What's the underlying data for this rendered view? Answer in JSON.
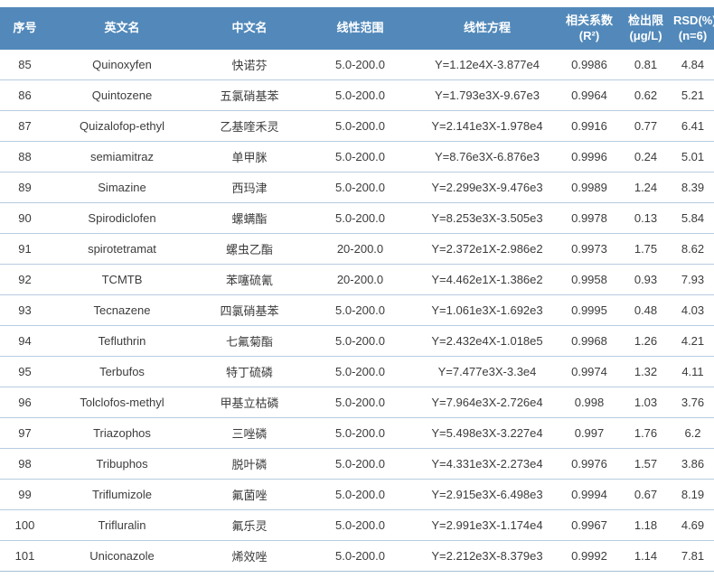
{
  "colors": {
    "header_bg": "#5289BA",
    "header_text": "#FFFFFF",
    "row_divider": "#B7CCE0",
    "body_text": "#3C3C3C"
  },
  "table": {
    "columns": [
      {
        "key": "no",
        "label": "序号",
        "sub": ""
      },
      {
        "key": "en",
        "label": "英文名",
        "sub": ""
      },
      {
        "key": "cn",
        "label": "中文名",
        "sub": ""
      },
      {
        "key": "range",
        "label": "线性范围",
        "sub": ""
      },
      {
        "key": "equation",
        "label": "线性方程",
        "sub": ""
      },
      {
        "key": "r2",
        "label": "相关系数",
        "sub": "(R²)"
      },
      {
        "key": "lod",
        "label": "检出限",
        "sub": "(μg/L)"
      },
      {
        "key": "rsd",
        "label": "RSD(%)",
        "sub": "(n=6)"
      }
    ],
    "rows": [
      {
        "no": "85",
        "en": "Quinoxyfen",
        "cn": "快诺芬",
        "range": "5.0-200.0",
        "equation": "Y=1.12e4X-3.877e4",
        "r2": "0.9986",
        "lod": "0.81",
        "rsd": "4.84"
      },
      {
        "no": "86",
        "en": "Quintozene",
        "cn": "五氯硝基苯",
        "range": "5.0-200.0",
        "equation": "Y=1.793e3X-9.67e3",
        "r2": "0.9964",
        "lod": "0.62",
        "rsd": "5.21"
      },
      {
        "no": "87",
        "en": "Quizalofop-ethyl",
        "cn": "乙基喹禾灵",
        "range": "5.0-200.0",
        "equation": "Y=2.141e3X-1.978e4",
        "r2": "0.9916",
        "lod": "0.77",
        "rsd": "6.41"
      },
      {
        "no": "88",
        "en": "semiamitraz",
        "cn": "单甲脒",
        "range": "5.0-200.0",
        "equation": "Y=8.76e3X-6.876e3",
        "r2": "0.9996",
        "lod": "0.24",
        "rsd": "5.01"
      },
      {
        "no": "89",
        "en": "Simazine",
        "cn": "西玛津",
        "range": "5.0-200.0",
        "equation": "Y=2.299e3X-9.476e3",
        "r2": "0.9989",
        "lod": "1.24",
        "rsd": "8.39"
      },
      {
        "no": "90",
        "en": "Spirodiclofen",
        "cn": "螺螨酯",
        "range": "5.0-200.0",
        "equation": "Y=8.253e3X-3.505e3",
        "r2": "0.9978",
        "lod": "0.13",
        "rsd": "5.84"
      },
      {
        "no": "91",
        "en": "spirotetramat",
        "cn": "螺虫乙酯",
        "range": "20-200.0",
        "equation": "Y=2.372e1X-2.986e2",
        "r2": "0.9973",
        "lod": "1.75",
        "rsd": "8.62"
      },
      {
        "no": "92",
        "en": "TCMTB",
        "cn": "苯噻硫氰",
        "range": "20-200.0",
        "equation": "Y=4.462e1X-1.386e2",
        "r2": "0.9958",
        "lod": "0.93",
        "rsd": "7.93"
      },
      {
        "no": "93",
        "en": "Tecnazene",
        "cn": "四氯硝基苯",
        "range": "5.0-200.0",
        "equation": "Y=1.061e3X-1.692e3",
        "r2": "0.9995",
        "lod": "0.48",
        "rsd": "4.03"
      },
      {
        "no": "94",
        "en": "Tefluthrin",
        "cn": "七氟菊酯",
        "range": "5.0-200.0",
        "equation": "Y=2.432e4X-1.018e5",
        "r2": "0.9968",
        "lod": "1.26",
        "rsd": "4.21"
      },
      {
        "no": "95",
        "en": "Terbufos",
        "cn": "特丁硫磷",
        "range": "5.0-200.0",
        "equation": "Y=7.477e3X-3.3e4",
        "r2": "0.9974",
        "lod": "1.32",
        "rsd": "4.11"
      },
      {
        "no": "96",
        "en": "Tolclofos-methyl",
        "cn": "甲基立枯磷",
        "range": "5.0-200.0",
        "equation": "Y=7.964e3X-2.726e4",
        "r2": "0.998",
        "lod": "1.03",
        "rsd": "3.76"
      },
      {
        "no": "97",
        "en": "Triazophos",
        "cn": "三唑磷",
        "range": "5.0-200.0",
        "equation": "Y=5.498e3X-3.227e4",
        "r2": "0.997",
        "lod": "1.76",
        "rsd": "6.2"
      },
      {
        "no": "98",
        "en": "Tribuphos",
        "cn": "脱叶磷",
        "range": "5.0-200.0",
        "equation": "Y=4.331e3X-2.273e4",
        "r2": "0.9976",
        "lod": "1.57",
        "rsd": "3.86"
      },
      {
        "no": "99",
        "en": "Triflumizole",
        "cn": "氟菌唑",
        "range": "5.0-200.0",
        "equation": "Y=2.915e3X-6.498e3",
        "r2": "0.9994",
        "lod": "0.67",
        "rsd": "8.19"
      },
      {
        "no": "100",
        "en": "Trifluralin",
        "cn": "氟乐灵",
        "range": "5.0-200.0",
        "equation": "Y=2.991e3X-1.174e4",
        "r2": "0.9967",
        "lod": "1.18",
        "rsd": "4.69"
      },
      {
        "no": "101",
        "en": "Uniconazole",
        "cn": "烯效唑",
        "range": "5.0-200.0",
        "equation": "Y=2.212e3X-8.379e3",
        "r2": "0.9992",
        "lod": "1.14",
        "rsd": "7.81"
      }
    ]
  }
}
